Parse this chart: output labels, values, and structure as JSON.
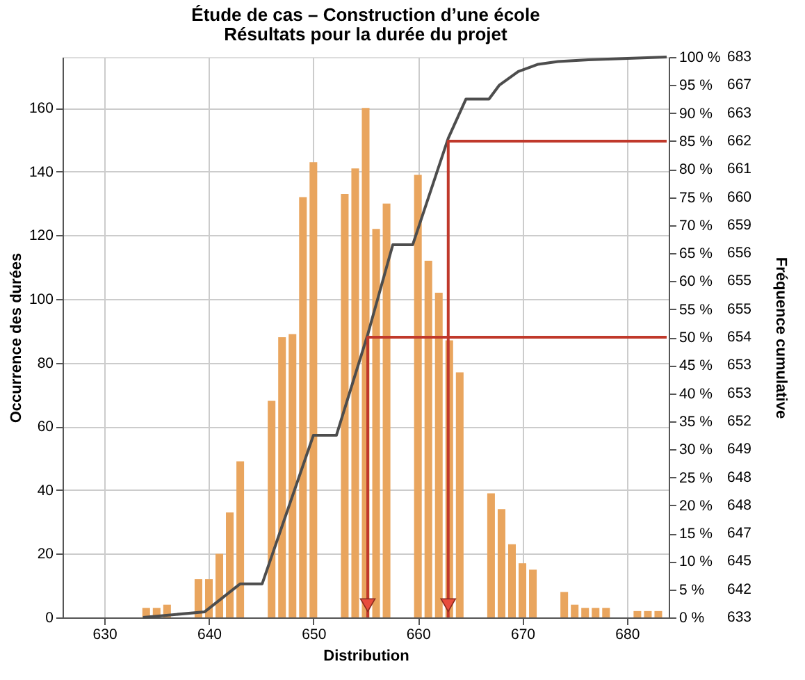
{
  "chart_data": {
    "type": "histogram",
    "title": "Étude de cas – Construction d’une école",
    "subtitle": "Résultats pour la durée du projet",
    "xlabel": "Distribution",
    "ylabel": "Occurrence des durées",
    "y2label": "Fréquence cumulative",
    "series": [
      {
        "type": "histogram",
        "color": "#e9a55e",
        "bins": [
          633.5,
          634.5,
          635.5,
          636.5,
          637.5,
          638.5,
          639.5,
          640.5,
          641.5,
          642.5,
          643.5,
          644.5,
          645.5,
          646.5,
          647.5,
          648.5,
          649.5,
          650.5,
          651.5,
          652.5,
          653.5,
          654.5,
          655.5,
          656.5,
          657.5,
          658.5,
          659.5,
          660.5,
          661.5,
          662.5,
          663.5,
          664.5,
          665.5,
          666.5,
          667.5,
          668.5,
          669.5,
          670.5,
          671.5,
          672.5,
          673.5,
          674.5,
          675.5,
          676.5,
          677.5,
          678.5,
          679.5,
          680.5,
          681.5,
          682.5,
          683.5
        ],
        "values": [
          3,
          3,
          4,
          0,
          0,
          12,
          12,
          20,
          33,
          49,
          0,
          0,
          68,
          88,
          89,
          132,
          143,
          0,
          0,
          133,
          141,
          160,
          122,
          130,
          0,
          0,
          139,
          112,
          102,
          87,
          77,
          0,
          0,
          39,
          34,
          23,
          17,
          15,
          0,
          0,
          8,
          4,
          3,
          3,
          3,
          0,
          0,
          2,
          2,
          2
        ]
      },
      {
        "type": "line",
        "axis": "y2",
        "color": "#4d4d4d",
        "x": [
          633.7,
          639.6,
          643,
          645.1,
          650,
          652.2,
          655.2,
          657.6,
          659.5,
          662.9,
          664.6,
          666.8,
          667.8,
          669.6,
          671.5,
          673.4,
          676.3,
          683.8
        ],
        "values": [
          0,
          1,
          6,
          6,
          32.5,
          32.5,
          50.5,
          66.5,
          66.5,
          85.5,
          92.5,
          92.5,
          95,
          97.4,
          98.7,
          99.2,
          99.5,
          100
        ]
      },
      {
        "type": "line",
        "axis": "y2",
        "color": "#c0392b",
        "x": [
          683.8,
          655.2,
          655.2
        ],
        "values": [
          50,
          50,
          0
        ]
      },
      {
        "type": "line",
        "axis": "y2",
        "color": "#c0392b",
        "x": [
          683.8,
          662.9,
          662.9
        ],
        "values": [
          85,
          85,
          0
        ]
      },
      {
        "type": "scatter",
        "axis": "y2",
        "marker": "triangle",
        "color": "#e84c3d",
        "x": [
          655.2,
          662.9
        ],
        "values": [
          2.2,
          2.2
        ]
      }
    ],
    "xlim": [
      626,
      684
    ],
    "xticks": [
      630,
      640,
      650,
      660,
      670,
      680
    ],
    "ylim": [
      0,
      176
    ],
    "yticks": [
      0,
      20,
      40,
      60,
      80,
      100,
      120,
      140,
      160
    ],
    "y2lim": [
      0,
      100
    ],
    "y2ticks": [
      {
        "value": 0,
        "label": "0 %"
      },
      {
        "value": 5,
        "label": "5 %"
      },
      {
        "value": 10,
        "label": "10 %"
      },
      {
        "value": 15,
        "label": "15 %"
      },
      {
        "value": 20,
        "label": "20 %"
      },
      {
        "value": 25,
        "label": "25 %"
      },
      {
        "value": 30,
        "label": "30 %"
      },
      {
        "value": 35,
        "label": "35 %"
      },
      {
        "value": 40,
        "label": "40 %"
      },
      {
        "value": 45,
        "label": "45 %"
      },
      {
        "value": 50,
        "label": "50 %"
      },
      {
        "value": 55,
        "label": "55 %"
      },
      {
        "value": 60,
        "label": "60 %"
      },
      {
        "value": 65,
        "label": "65 %"
      },
      {
        "value": 70,
        "label": "70 %"
      },
      {
        "value": 75,
        "label": "75 %"
      },
      {
        "value": 80,
        "label": "80 %"
      },
      {
        "value": 85,
        "label": "85 %"
      },
      {
        "value": 90,
        "label": "90 %"
      },
      {
        "value": 95,
        "label": "95 %"
      },
      {
        "value": 100,
        "label": "100 %"
      }
    ],
    "annotations": [
      "633",
      "642",
      "645",
      "647",
      "648",
      "648",
      "649",
      "652",
      "653",
      "653",
      "654",
      "655",
      "655",
      "656",
      "659",
      "660",
      "661",
      "662",
      "663",
      "667",
      "683"
    ],
    "grid": true
  }
}
